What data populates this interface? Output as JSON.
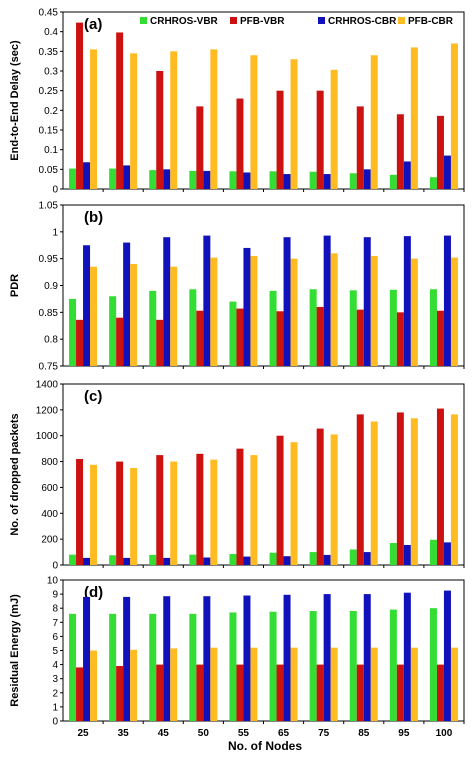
{
  "legend": {
    "items": [
      {
        "name": "CRHROS-VBR",
        "color": "#33dd33"
      },
      {
        "name": "PFB-VBR",
        "color": "#cc1111"
      },
      {
        "name": "CRHROS-CBR",
        "color": "#1111bb"
      },
      {
        "name": "PFB-CBR",
        "color": "#ffbb22"
      }
    ]
  },
  "xlabel": "No. of Nodes",
  "chart_data": [
    {
      "type": "bar",
      "panel_label": "(a)",
      "ylabel": "End-to-End Delay (sec)",
      "ylim": [
        0,
        0.45
      ],
      "yticks": [
        "0",
        "0.05",
        "0.1",
        "0.15",
        "0.2",
        "0.25",
        "0.3",
        "0.35",
        "0.4",
        "0.45"
      ],
      "categories": [
        "25",
        "35",
        "45",
        "50",
        "55",
        "65",
        "75",
        "85",
        "95",
        "100"
      ],
      "series": [
        {
          "name": "CRHROS-VBR",
          "values": [
            0.052,
            0.052,
            0.048,
            0.046,
            0.045,
            0.045,
            0.044,
            0.04,
            0.036,
            0.03
          ]
        },
        {
          "name": "PFB-VBR",
          "values": [
            0.423,
            0.398,
            0.3,
            0.21,
            0.23,
            0.25,
            0.25,
            0.21,
            0.19,
            0.186
          ]
        },
        {
          "name": "CRHROS-CBR",
          "values": [
            0.068,
            0.06,
            0.05,
            0.046,
            0.042,
            0.038,
            0.038,
            0.05,
            0.07,
            0.085
          ]
        },
        {
          "name": "PFB-CBR",
          "values": [
            0.355,
            0.345,
            0.35,
            0.355,
            0.34,
            0.33,
            0.303,
            0.34,
            0.36,
            0.37
          ]
        }
      ]
    },
    {
      "type": "bar",
      "panel_label": "(b)",
      "ylabel": "PDR",
      "ylim": [
        0.75,
        1.05
      ],
      "yticks": [
        "0.75",
        "0.8",
        "0.85",
        "0.9",
        "0.95",
        "1",
        "1.05"
      ],
      "categories": [
        "25",
        "35",
        "45",
        "50",
        "55",
        "65",
        "75",
        "85",
        "95",
        "100"
      ],
      "series": [
        {
          "name": "CRHROS-VBR",
          "values": [
            0.875,
            0.88,
            0.89,
            0.893,
            0.87,
            0.89,
            0.893,
            0.891,
            0.892,
            0.893
          ]
        },
        {
          "name": "PFB-VBR",
          "values": [
            0.836,
            0.84,
            0.836,
            0.853,
            0.857,
            0.852,
            0.86,
            0.855,
            0.85,
            0.853
          ]
        },
        {
          "name": "CRHROS-CBR",
          "values": [
            0.975,
            0.98,
            0.99,
            0.993,
            0.97,
            0.99,
            0.993,
            0.99,
            0.992,
            0.993
          ]
        },
        {
          "name": "PFB-CBR",
          "values": [
            0.935,
            0.94,
            0.935,
            0.952,
            0.955,
            0.95,
            0.96,
            0.955,
            0.95,
            0.952
          ]
        }
      ]
    },
    {
      "type": "bar",
      "panel_label": "(c)",
      "ylabel": "No. of dropped packets",
      "ylim": [
        0,
        1400
      ],
      "yticks": [
        "0",
        "200",
        "400",
        "600",
        "800",
        "1000",
        "1200",
        "1400"
      ],
      "categories": [
        "25",
        "35",
        "45",
        "50",
        "55",
        "65",
        "75",
        "85",
        "95",
        "100"
      ],
      "series": [
        {
          "name": "CRHROS-VBR",
          "values": [
            80,
            75,
            78,
            80,
            85,
            95,
            100,
            120,
            170,
            195
          ]
        },
        {
          "name": "PFB-VBR",
          "values": [
            820,
            800,
            850,
            860,
            900,
            1000,
            1055,
            1165,
            1180,
            1210
          ]
        },
        {
          "name": "CRHROS-CBR",
          "values": [
            55,
            55,
            55,
            58,
            65,
            68,
            78,
            100,
            155,
            175
          ]
        },
        {
          "name": "PFB-CBR",
          "values": [
            775,
            750,
            800,
            815,
            850,
            950,
            1010,
            1110,
            1135,
            1165
          ]
        }
      ]
    },
    {
      "type": "bar",
      "panel_label": "(d)",
      "ylabel": "Residual Energy (mJ)",
      "ylim": [
        0,
        10
      ],
      "yticks": [
        "0",
        "1",
        "2",
        "3",
        "4",
        "5",
        "6",
        "7",
        "8",
        "9",
        "10"
      ],
      "categories": [
        "25",
        "35",
        "45",
        "50",
        "55",
        "65",
        "75",
        "85",
        "95",
        "100"
      ],
      "series": [
        {
          "name": "CRHROS-VBR",
          "values": [
            7.6,
            7.6,
            7.6,
            7.6,
            7.7,
            7.75,
            7.8,
            7.8,
            7.9,
            8.0
          ]
        },
        {
          "name": "PFB-VBR",
          "values": [
            3.8,
            3.9,
            4.0,
            4.0,
            4.0,
            4.0,
            4.0,
            4.0,
            4.0,
            4.0
          ]
        },
        {
          "name": "CRHROS-CBR",
          "values": [
            8.8,
            8.8,
            8.85,
            8.85,
            8.9,
            8.95,
            9.0,
            9.0,
            9.1,
            9.25
          ]
        },
        {
          "name": "PFB-CBR",
          "values": [
            5.0,
            5.05,
            5.15,
            5.2,
            5.2,
            5.2,
            5.2,
            5.2,
            5.2,
            5.2
          ]
        }
      ]
    }
  ]
}
